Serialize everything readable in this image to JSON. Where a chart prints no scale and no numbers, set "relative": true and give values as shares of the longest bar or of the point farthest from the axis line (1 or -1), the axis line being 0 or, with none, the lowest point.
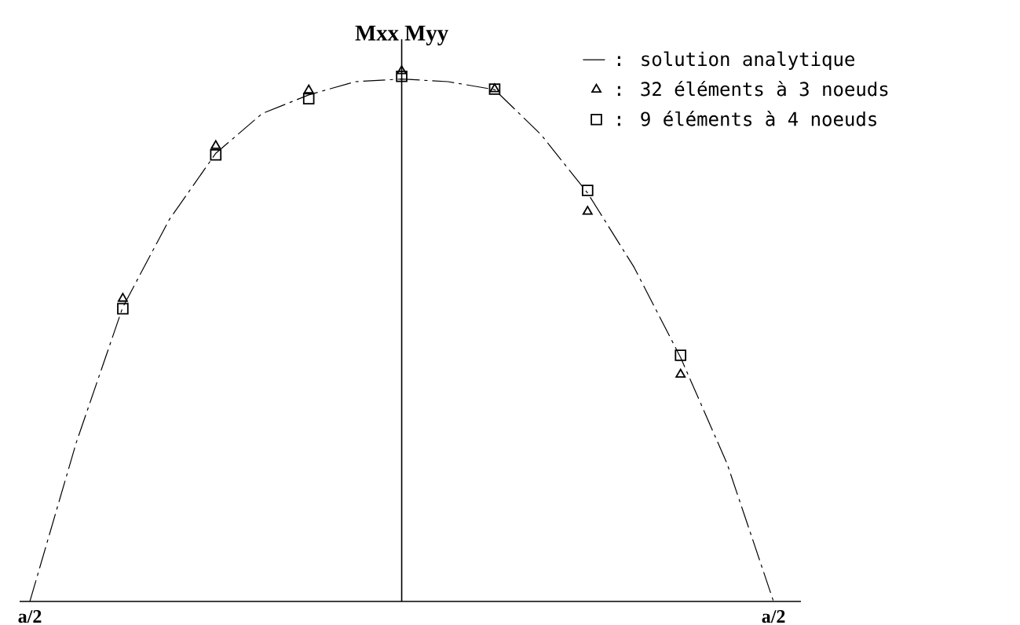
{
  "chart_data": {
    "type": "line",
    "ylabel": "Mxx Myy",
    "relative": true,
    "legend": "top right",
    "categories": [
      "a/2",
      null,
      null,
      null,
      null,
      null,
      null,
      null,
      null,
      null,
      null,
      null,
      null,
      null,
      null,
      null,
      "a/2"
    ],
    "series": [
      {
        "name": ": solution analytique",
        "color": "#000000",
        "line_style": "dashed",
        "marker": "none",
        "values": [
          0,
          0.3,
          0.555,
          0.72,
          0.845,
          0.92,
          0.955,
          0.98,
          0.985,
          0.98,
          0.965,
          0.88,
          0.77,
          0.63,
          0.46,
          0.26,
          0
        ]
      },
      {
        "name": ": 32 éléments à 3 noeuds",
        "type": "scatter",
        "color": "#000000",
        "marker": "triangle",
        "values": [
          null,
          null,
          0.571,
          null,
          0.859,
          null,
          0.964,
          null,
          1.0,
          null,
          0.966,
          null,
          0.735,
          null,
          0.428,
          null,
          null
        ]
      },
      {
        "name": ": 9 éléments à 4 noeuds",
        "type": "scatter",
        "color": "#000000",
        "marker": "square",
        "values": [
          null,
          null,
          0.552,
          null,
          0.842,
          null,
          0.948,
          null,
          0.99,
          null,
          0.966,
          null,
          0.775,
          null,
          0.464,
          null,
          null
        ]
      }
    ]
  }
}
